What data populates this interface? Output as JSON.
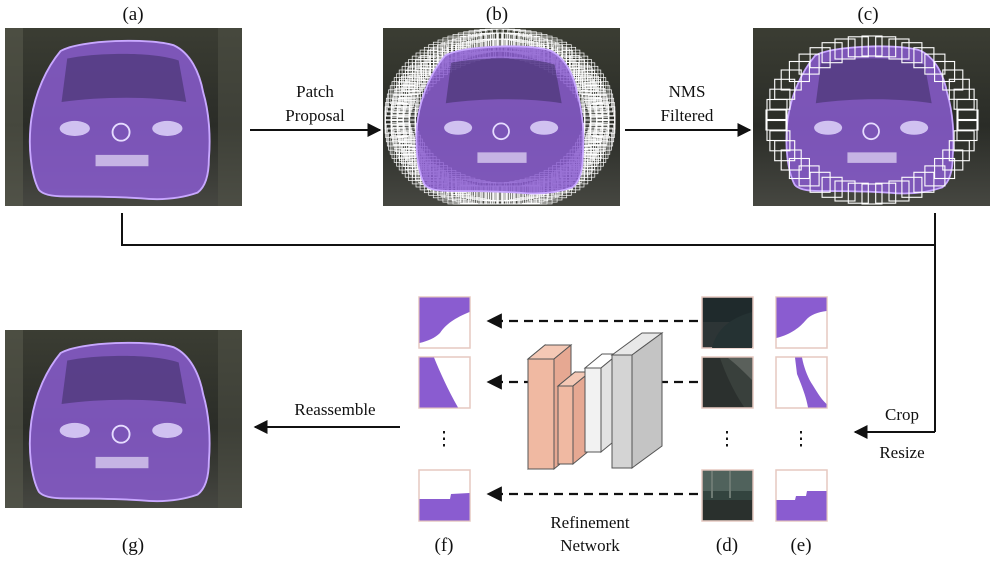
{
  "panels": {
    "a": "(a)",
    "b": "(b)",
    "c": "(c)",
    "d": "(d)",
    "e": "(e)",
    "f": "(f)",
    "g": "(g)"
  },
  "arrows": {
    "patch_proposal": [
      "Patch",
      "Proposal"
    ],
    "nms_filtered": [
      "NMS",
      "Filtered"
    ],
    "crop": "Crop",
    "resize": "Resize",
    "reassemble": "Reassemble",
    "refinement_network": [
      "Refinement",
      "Network"
    ]
  },
  "ellipsis": "⋮",
  "colors": {
    "mask": "#8a5cd0",
    "mask_outline": "#c8a8ff",
    "patch_frame": "#ffffff",
    "thumb_border": "#e6c8c0",
    "network_salmon": "#f0b9a2",
    "network_white": "#f2f2f2",
    "network_gray": "#d4d4d4",
    "photo_dark": "#2c2f2a"
  }
}
